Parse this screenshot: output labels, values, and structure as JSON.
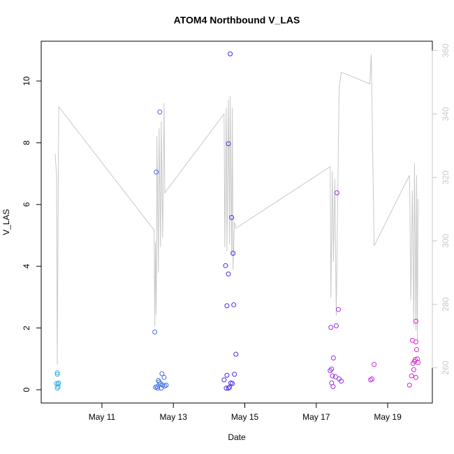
{
  "chart_data": {
    "type": "scatter",
    "title": "ATOM4 Northbound V_LAS",
    "x_label": "Date",
    "y_label": "V_LAS",
    "xlim": [
      9.3,
      20.25
    ],
    "ylim": [
      -0.43,
      11.29
    ],
    "y2lim": [
      248.9,
      362.95
    ],
    "xticks": [
      {
        "value": 11,
        "label": "May 11"
      },
      {
        "value": 13,
        "label": "May 13"
      },
      {
        "value": 15,
        "label": "May 15"
      },
      {
        "value": 17,
        "label": "May 17"
      },
      {
        "value": 19,
        "label": "May 19"
      }
    ],
    "yticks": [
      0,
      2,
      4,
      6,
      8,
      10
    ],
    "y2ticks": [
      260,
      280,
      300,
      320,
      340,
      360
    ],
    "y2_color": "#c8c8c8",
    "series": [
      {
        "color": "#3aaee0",
        "x": [
          9.75,
          9.75,
          9.73,
          9.77,
          9.79,
          9.75,
          9.77
        ],
        "values": [
          0.55,
          0.5,
          0.2,
          0.18,
          0.22,
          0.05,
          0.1
        ]
      },
      {
        "color": "#3b6fe2",
        "x": [
          12.48,
          12.52,
          12.62,
          12.68,
          12.74,
          12.58,
          12.6,
          12.64,
          12.7,
          12.54,
          12.5,
          12.56,
          12.66,
          12.76,
          12.8
        ],
        "values": [
          1.87,
          7.05,
          9.0,
          0.52,
          0.4,
          0.3,
          0.25,
          0.2,
          0.15,
          0.1,
          0.08,
          0.05,
          0.05,
          0.12,
          0.15
        ]
      },
      {
        "color": "#4a2ae8",
        "x": [
          14.59,
          14.54,
          14.63,
          14.67,
          14.46,
          14.54,
          14.5,
          14.69,
          14.75,
          14.71,
          14.5,
          14.42,
          14.61,
          14.65,
          14.48,
          14.54,
          14.57
        ],
        "values": [
          10.88,
          7.97,
          5.58,
          4.42,
          4.02,
          3.75,
          2.72,
          2.75,
          1.15,
          0.5,
          0.47,
          0.32,
          0.22,
          0.2,
          0.05,
          0.05,
          0.08
        ]
      },
      {
        "color": "#9a2ee2",
        "x": [
          17.58,
          17.62,
          17.56,
          17.41,
          17.48,
          17.43,
          17.39,
          17.45,
          17.54,
          17.64,
          17.7,
          17.43,
          17.47
        ],
        "values": [
          6.38,
          2.6,
          2.07,
          2.02,
          1.03,
          0.67,
          0.62,
          0.45,
          0.42,
          0.35,
          0.28,
          0.22,
          0.1
        ]
      },
      {
        "color": "#c030e0",
        "x": [
          18.62,
          18.56,
          18.52
        ],
        "values": [
          0.82,
          0.35,
          0.32
        ]
      },
      {
        "color": "#e020d2",
        "x": [
          19.79,
          19.69,
          19.79,
          19.81,
          19.83,
          19.77,
          19.75,
          19.85,
          19.71,
          19.73,
          19.67,
          19.79,
          19.61
        ],
        "values": [
          2.22,
          1.6,
          1.55,
          1.3,
          1.0,
          0.98,
          0.92,
          0.88,
          0.85,
          0.65,
          0.45,
          0.4,
          0.15
        ]
      },
      {
        "type": "line",
        "axis": "y2",
        "color": "#c8c8c8",
        "x": [
          9.69,
          9.73,
          9.75,
          9.79,
          12.46,
          12.48,
          12.5,
          12.52,
          12.54,
          12.58,
          12.6,
          12.64,
          12.66,
          12.7,
          12.74,
          12.76,
          12.78,
          14.42,
          14.44,
          14.48,
          14.5,
          14.54,
          14.57,
          14.59,
          14.63,
          14.65,
          14.67,
          14.71,
          14.75,
          17.39,
          17.41,
          17.45,
          17.48,
          17.52,
          17.56,
          17.64,
          17.7,
          18.5,
          18.54,
          18.62,
          19.61,
          19.65,
          19.69,
          19.73,
          19.75,
          19.79,
          19.81,
          19.83,
          19.85
        ],
        "values": [
          327.5,
          320.7,
          261,
          342.3,
          303.4,
          273,
          299.5,
          276.8,
          333,
          290,
          335.5,
          298,
          337.7,
          301,
          343.4,
          315,
          315.5,
          340,
          298,
          342,
          296.8,
          344.5,
          299,
          345.7,
          295.7,
          342,
          291,
          306,
          304,
          323.4,
          282,
          321.8,
          293.4,
          319.5,
          276.4,
          348,
          353.2,
          349.5,
          358.9,
          298.4,
          320.7,
          281.4,
          316,
          273,
          324.5,
          271.8,
          320.7,
          268.4,
          313.2
        ]
      }
    ]
  }
}
